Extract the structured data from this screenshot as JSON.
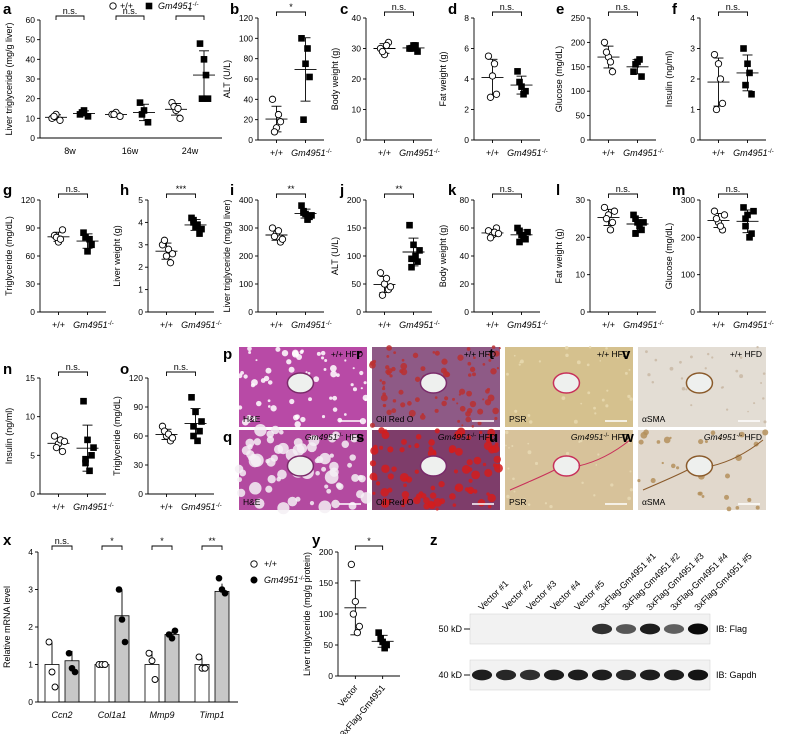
{
  "legend": {
    "wt": "+/+",
    "ko": "Gm4951",
    "ko_sup": "-/-"
  },
  "chart_data": [
    {
      "id": "a",
      "type": "scatter",
      "ylabel": "Liver triglyceride (mg/g liver)",
      "ylim": [
        0,
        60
      ],
      "yticks": [
        0,
        10,
        20,
        30,
        40,
        50,
        60
      ],
      "categories": [
        "8w",
        "16w",
        "24w"
      ],
      "groups": [
        {
          "wt": [
            10,
            12,
            9,
            11
          ],
          "ko": [
            12,
            14,
            11,
            13
          ]
        },
        {
          "wt": [
            12,
            13,
            11,
            12
          ],
          "ko": [
            18,
            14,
            8,
            12
          ]
        },
        {
          "wt": [
            18,
            14,
            10,
            16,
            15
          ],
          "ko": [
            48,
            40,
            20,
            20,
            32
          ]
        }
      ],
      "sig": [
        "n.s.",
        "n.s.",
        "*"
      ]
    },
    {
      "id": "b",
      "type": "scatter",
      "ylabel": "ALT (U/L)",
      "ylim": [
        0,
        120
      ],
      "yticks": [
        0,
        20,
        40,
        60,
        80,
        100,
        120
      ],
      "categories": [
        "+/+",
        "Gm4951-/-"
      ],
      "wt": [
        40,
        12,
        18,
        8,
        25
      ],
      "ko": [
        100,
        75,
        62,
        20,
        90
      ],
      "sig": "*"
    },
    {
      "id": "c",
      "type": "scatter",
      "ylabel": "Body weight (g)",
      "ylim": [
        0,
        40
      ],
      "yticks": [
        0,
        10,
        20,
        30,
        40
      ],
      "categories": [
        "+/+",
        "Gm4951-/-"
      ],
      "wt": [
        30,
        28,
        32,
        29,
        31
      ],
      "ko": [
        30,
        31,
        29,
        30,
        31
      ],
      "sig": "n.s."
    },
    {
      "id": "d",
      "type": "scatter",
      "ylabel": "Fat weight (g)",
      "ylim": [
        0,
        8
      ],
      "yticks": [
        0,
        2,
        4,
        6,
        8
      ],
      "categories": [
        "+/+",
        "Gm4951-/-"
      ],
      "wt": [
        5.5,
        4.2,
        3.0,
        2.8,
        5.0
      ],
      "ko": [
        4.5,
        3.5,
        3.2,
        3.8,
        3.0
      ],
      "sig": "n.s."
    },
    {
      "id": "e",
      "type": "scatter",
      "ylabel": "Glucose (mg/dL)",
      "ylim": [
        0,
        250
      ],
      "yticks": [
        0,
        50,
        100,
        150,
        200,
        250
      ],
      "categories": [
        "+/+",
        "Gm4951-/-"
      ],
      "wt": [
        200,
        170,
        140,
        180,
        160
      ],
      "ko": [
        140,
        160,
        130,
        155,
        165
      ],
      "sig": "n.s."
    },
    {
      "id": "f",
      "type": "scatter",
      "ylabel": "Insulin (ng/ml)",
      "ylim": [
        0,
        4
      ],
      "yticks": [
        0,
        1,
        2,
        3,
        4
      ],
      "categories": [
        "+/+",
        "Gm4951-/-"
      ],
      "wt": [
        2.8,
        2.5,
        1.2,
        1.0,
        2.0
      ],
      "ko": [
        3.0,
        2.5,
        1.5,
        1.8,
        2.2
      ],
      "sig": "n.s."
    },
    {
      "id": "g",
      "type": "scatter",
      "ylabel": "Triglyceride (mg/dL)",
      "ylim": [
        0,
        120
      ],
      "yticks": [
        0,
        30,
        60,
        90,
        120
      ],
      "categories": [
        "+/+",
        "Gm4951-/-"
      ],
      "wt": [
        82,
        75,
        88,
        80,
        78
      ],
      "ko": [
        85,
        65,
        72,
        80,
        78
      ],
      "sig": "n.s."
    },
    {
      "id": "h",
      "type": "scatter",
      "ylabel": "Liver weight (g)",
      "ylim": [
        0,
        5
      ],
      "yticks": [
        0,
        1,
        2,
        3,
        4,
        5
      ],
      "categories": [
        "+/+",
        "Gm4951-/-"
      ],
      "wt": [
        3.0,
        2.5,
        2.2,
        3.2,
        2.8,
        2.6
      ],
      "ko": [
        4.2,
        3.8,
        3.5,
        4.0,
        3.9,
        3.7,
        4.1
      ],
      "sig": "***"
    },
    {
      "id": "i",
      "type": "scatter",
      "ylabel": "Liver triglyceride (mg/g liver)",
      "ylim": [
        0,
        400
      ],
      "yticks": [
        0,
        100,
        200,
        300,
        400
      ],
      "categories": [
        "+/+",
        "Gm4951-/-"
      ],
      "wt": [
        300,
        280,
        250,
        270,
        290,
        260
      ],
      "ko": [
        380,
        350,
        340,
        360,
        330,
        345,
        355
      ],
      "sig": "**"
    },
    {
      "id": "j",
      "type": "scatter",
      "ylabel": "ALT (U/L)",
      "ylim": [
        0,
        200
      ],
      "yticks": [
        0,
        50,
        100,
        150,
        200
      ],
      "categories": [
        "+/+",
        "Gm4951-/-"
      ],
      "wt": [
        70,
        50,
        40,
        30,
        60,
        45
      ],
      "ko": [
        155,
        120,
        90,
        80,
        100,
        110,
        95
      ],
      "sig": "**"
    },
    {
      "id": "k",
      "type": "scatter",
      "ylabel": "Body weight (g)",
      "ylim": [
        0,
        80
      ],
      "yticks": [
        0,
        20,
        40,
        60,
        80
      ],
      "categories": [
        "+/+",
        "Gm4951-/-"
      ],
      "wt": [
        58,
        55,
        60,
        53,
        57,
        56
      ],
      "ko": [
        60,
        55,
        52,
        58,
        54,
        57,
        50
      ],
      "sig": "n.s."
    },
    {
      "id": "l",
      "type": "scatter",
      "ylabel": "Fat weight (g)",
      "ylim": [
        0,
        30
      ],
      "yticks": [
        0,
        10,
        20,
        30
      ],
      "categories": [
        "+/+",
        "Gm4951-/-"
      ],
      "wt": [
        28,
        26,
        24,
        25,
        22,
        27
      ],
      "ko": [
        26,
        24,
        22,
        25,
        23,
        24,
        21
      ],
      "sig": "n.s."
    },
    {
      "id": "m",
      "type": "scatter",
      "ylabel": "Glucose (mg/dL)",
      "ylim": [
        0,
        300
      ],
      "yticks": [
        0,
        100,
        200,
        300
      ],
      "categories": [
        "+/+",
        "Gm4951-/-"
      ],
      "wt": [
        270,
        240,
        220,
        250,
        230,
        260
      ],
      "ko": [
        280,
        260,
        210,
        250,
        200,
        270,
        230
      ],
      "sig": "n.s."
    },
    {
      "id": "n",
      "type": "scatter",
      "ylabel": "Insulin (ng/ml)",
      "ylim": [
        0,
        15
      ],
      "yticks": [
        0,
        5,
        10,
        15
      ],
      "categories": [
        "+/+",
        "Gm4951-/-"
      ],
      "wt": [
        7.5,
        6.5,
        5.5,
        6.0,
        7.0,
        6.8
      ],
      "ko": [
        12.0,
        7.0,
        5.0,
        4.0,
        3.0,
        6.0,
        4.5
      ],
      "sig": "n.s."
    },
    {
      "id": "o",
      "type": "scatter",
      "ylabel": "Triglyceride (mg/dL)",
      "ylim": [
        0,
        120
      ],
      "yticks": [
        0,
        30,
        60,
        90,
        120
      ],
      "categories": [
        "+/+",
        "Gm4951-/-"
      ],
      "wt": [
        70,
        60,
        55,
        65,
        62,
        58
      ],
      "ko": [
        100,
        85,
        65,
        60,
        55,
        75,
        70
      ],
      "sig": "n.s."
    },
    {
      "id": "x",
      "type": "bar",
      "ylabel": "Relative mRNA level",
      "ylim": [
        0,
        4
      ],
      "yticks": [
        0,
        1,
        2,
        3,
        4
      ],
      "categories": [
        "Ccn2",
        "Col1a1",
        "Mmp9",
        "Timp1"
      ],
      "series": [
        {
          "name": "+/+",
          "values": [
            1.0,
            1.0,
            1.0,
            1.0
          ]
        },
        {
          "name": "Gm4951-/-",
          "values": [
            1.1,
            2.3,
            1.8,
            2.95
          ]
        }
      ],
      "points": [
        {
          "wt": [
            1.6,
            0.8,
            0.4
          ],
          "ko": [
            1.3,
            0.9,
            0.8
          ]
        },
        {
          "wt": [
            1.0,
            1.0,
            1.0
          ],
          "ko": [
            3.0,
            2.2,
            1.6
          ]
        },
        {
          "wt": [
            1.3,
            1.1,
            0.6
          ],
          "ko": [
            1.8,
            1.7,
            1.9
          ]
        },
        {
          "wt": [
            1.2,
            0.9,
            0.9
          ],
          "ko": [
            3.3,
            3.0,
            2.9
          ]
        }
      ],
      "sig": [
        "n.s.",
        "*",
        "*",
        "**"
      ]
    },
    {
      "id": "y",
      "type": "scatter",
      "ylabel": "Liver triglyceride (mg/g protein)",
      "ylim": [
        0,
        200
      ],
      "yticks": [
        0,
        50,
        100,
        150,
        200
      ],
      "categories": [
        "Vector",
        "3xFlag-Gm4951"
      ],
      "wt": [
        180,
        120,
        80,
        100,
        70
      ],
      "ko": [
        70,
        55,
        50,
        60,
        45
      ],
      "sig": "*"
    }
  ],
  "micrographs": [
    {
      "id": "p",
      "tr": "+/+ HFD",
      "bl": "H&E"
    },
    {
      "id": "q",
      "tr": "Gm4951-/- HFD",
      "bl": "H&E"
    },
    {
      "id": "r",
      "tr": "+/+ HFD",
      "bl": "Oil Red O"
    },
    {
      "id": "s",
      "tr": "Gm4951-/- HFD",
      "bl": "Oil Red O"
    },
    {
      "id": "t",
      "tr": "+/+ HFD",
      "bl": "PSR"
    },
    {
      "id": "u",
      "tr": "Gm4951-/- HFD",
      "bl": "PSR"
    },
    {
      "id": "v",
      "tr": "+/+ HFD",
      "bl": "αSMA"
    },
    {
      "id": "w",
      "tr": "Gm4951-/- HFD",
      "bl": "αSMA"
    }
  ],
  "blot": {
    "lanes": [
      "Vector #1",
      "Vector #2",
      "Vector #3",
      "Vector #4",
      "Vector #5",
      "3xFlag-Gm4951 #1",
      "3xFlag-Gm4951 #2",
      "3xFlag-Gm4951 #3",
      "3xFlag-Gm4951 #4",
      "3xFlag-Gm4951 #5"
    ],
    "rows": [
      {
        "marker": "50 kD",
        "label": "IB: Flag",
        "intensity": [
          0,
          0,
          0,
          0,
          0,
          0.8,
          0.6,
          0.9,
          0.55,
          1.0
        ]
      },
      {
        "marker": "40 kD",
        "label": "IB: Gapdh",
        "intensity": [
          0.9,
          0.85,
          0.8,
          0.9,
          0.9,
          0.9,
          0.85,
          0.9,
          0.9,
          0.95
        ]
      }
    ]
  }
}
